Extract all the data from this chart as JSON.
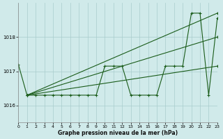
{
  "title": "Graphe pression niveau de la mer (hPa)",
  "bg_color": "#d0eaea",
  "grid_color": "#a8cccc",
  "line_color": "#1a5c1a",
  "xlim": [
    0,
    23
  ],
  "ylim": [
    1015.5,
    1019.0
  ],
  "yticks": [
    1016,
    1017,
    1018
  ],
  "xticks": [
    0,
    1,
    2,
    3,
    4,
    5,
    6,
    7,
    8,
    9,
    10,
    11,
    12,
    13,
    14,
    15,
    16,
    17,
    18,
    19,
    20,
    21,
    22,
    23
  ],
  "series": [
    {
      "x": [
        0,
        1,
        2,
        3,
        4,
        5,
        6,
        7,
        8,
        9,
        10,
        11,
        12,
        13,
        14,
        15,
        16,
        17,
        18,
        19,
        20,
        21,
        22,
        23
      ],
      "y": [
        1017.2,
        1016.3,
        1016.3,
        1016.3,
        1016.3,
        1016.3,
        1016.3,
        1016.3,
        1016.3,
        1016.3,
        1017.15,
        1017.15,
        1017.15,
        1016.3,
        1016.3,
        1016.3,
        1016.3,
        1017.15,
        1017.15,
        1017.15,
        1018.7,
        1018.7,
        1016.3,
        1018.55
      ]
    },
    {
      "x": [
        1,
        23
      ],
      "y": [
        1016.3,
        1018.7
      ]
    },
    {
      "x": [
        1,
        23
      ],
      "y": [
        1016.3,
        1018.0
      ]
    },
    {
      "x": [
        1,
        23
      ],
      "y": [
        1016.3,
        1017.15
      ]
    }
  ]
}
